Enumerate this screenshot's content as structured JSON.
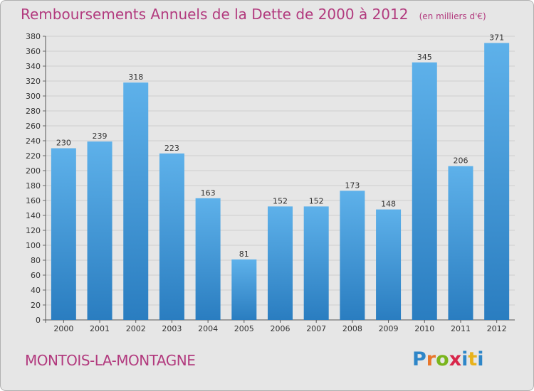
{
  "header": {
    "title": "Remboursements Annuels de la Dette de 2000 à 2012",
    "unit": "(en milliers d'€)"
  },
  "footer": {
    "commune": "MONTOIS-LA-MONTAGNE",
    "logo_text": "Proxiti"
  },
  "colors": {
    "accent_text": "#b23a7e",
    "bar_top": "#5eb1ea",
    "bar_bottom": "#2a7dc0",
    "background": "#e6e6e6"
  },
  "chart_data": {
    "type": "bar",
    "title": "Remboursements Annuels de la Dette de 2000 à 2012",
    "unit": "(en milliers d'€)",
    "xlabel": "",
    "ylabel": "",
    "categories": [
      "2000",
      "2001",
      "2002",
      "2003",
      "2004",
      "2005",
      "2006",
      "2007",
      "2008",
      "2009",
      "2010",
      "2011",
      "2012"
    ],
    "values": [
      230,
      239,
      318,
      223,
      163,
      81,
      152,
      152,
      173,
      148,
      345,
      206,
      371
    ],
    "ylim": [
      0,
      380
    ],
    "ytick_step": 20,
    "grid": true,
    "data_labels": true
  }
}
